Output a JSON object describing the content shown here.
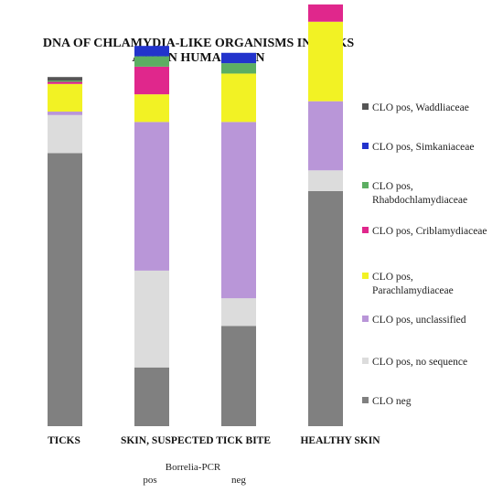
{
  "chart_data": {
    "type": "bar",
    "stacked": true,
    "normalized": true,
    "title_lines": [
      "DNA OF CHLAMYDIA-LIKE ORGANISMS IN TICKS",
      "AND IN HUMAN SKIN"
    ],
    "category_labels": [
      "TICKS",
      "SKIN, SUSPECTED TICK BITE",
      "HEALTHY SKIN"
    ],
    "bar_labels": [
      "",
      "pos",
      "neg",
      ""
    ],
    "subgroup_label": "Borrelia-PCR",
    "ylim": [
      0,
      100
    ],
    "legend_position": "right",
    "series": [
      {
        "name": "CLO neg",
        "color": "#808080",
        "values": [
          79,
          17,
          29,
          68
        ]
      },
      {
        "name": "CLO pos, no sequence",
        "color": "#dcdcdc",
        "values": [
          11,
          28,
          8,
          6
        ]
      },
      {
        "name": "CLO pos, unclassified",
        "color": "#b996d8",
        "values": [
          1,
          43,
          51,
          20
        ]
      },
      {
        "name": "CLO pos, Parachlamydiaceae",
        "color": "#f2f224",
        "values": [
          8,
          8,
          14,
          23
        ]
      },
      {
        "name": "CLO pos, Criblamydiaceae",
        "color": "#e0278c",
        "values": [
          0.6,
          8,
          0,
          5
        ]
      },
      {
        "name": "CLO pos, Rhabdochlamydiaceae",
        "color": "#5cae62",
        "values": [
          0.4,
          3,
          3,
          0
        ]
      },
      {
        "name": "CLO pos, Simkaniaceae",
        "color": "#2233cc",
        "values": [
          0,
          3,
          3,
          0
        ]
      },
      {
        "name": "CLO pos, Waddliaceae",
        "color": "#555555",
        "values": [
          1,
          0,
          0,
          0
        ]
      }
    ]
  }
}
